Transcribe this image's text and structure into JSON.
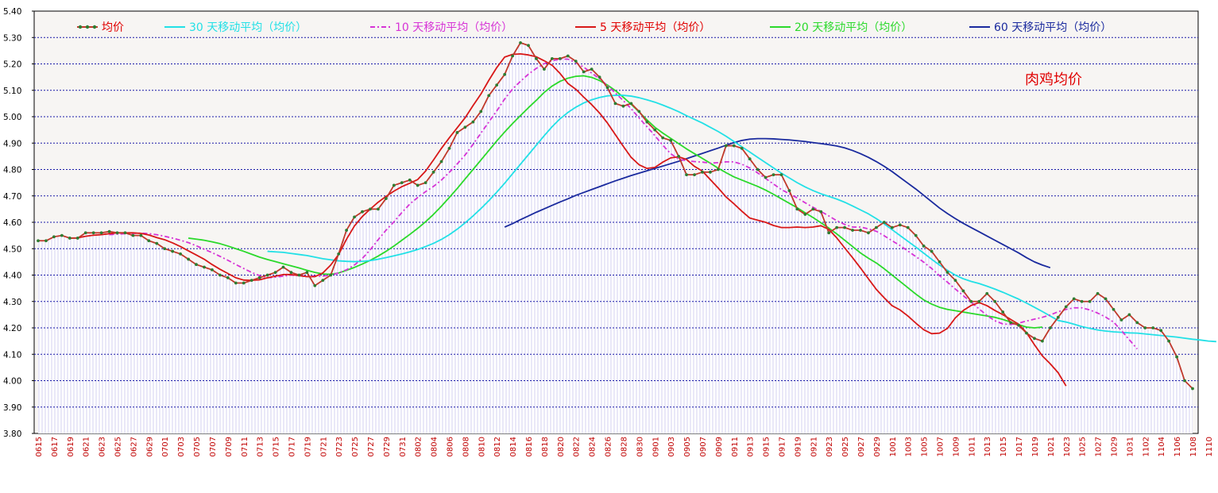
{
  "chart_data": {
    "type": "line",
    "title": "肉鸡均价",
    "xlabel": "",
    "ylabel": "",
    "ylim": [
      3.8,
      5.4
    ],
    "yticks": [
      "3.80",
      "3.90",
      "4.00",
      "4.10",
      "4.20",
      "4.30",
      "4.40",
      "4.50",
      "4.60",
      "4.70",
      "4.80",
      "4.90",
      "5.00",
      "5.10",
      "5.20",
      "5.30",
      "5.40"
    ],
    "xticks": [
      "0615",
      "0617",
      "0619",
      "0621",
      "0623",
      "0625",
      "0627",
      "0629",
      "0701",
      "0703",
      "0705",
      "0707",
      "0709",
      "0711",
      "0713",
      "0715",
      "0717",
      "0719",
      "0721",
      "0723",
      "0725",
      "0727",
      "0729",
      "0731",
      "0802",
      "0804",
      "0806",
      "0808",
      "0810",
      "0812",
      "0814",
      "0816",
      "0818",
      "0820",
      "0822",
      "0824",
      "0826",
      "0828",
      "0830",
      "0901",
      "0903",
      "0905",
      "0907",
      "0909",
      "0911",
      "0913",
      "0915",
      "0917",
      "0919",
      "0921",
      "0923",
      "0925",
      "0927",
      "0929",
      "1001",
      "1003",
      "1005",
      "1007",
      "1009",
      "1011",
      "1013",
      "1015",
      "1017",
      "1019",
      "1021",
      "1023",
      "1025",
      "1027",
      "1029",
      "1031",
      "1102",
      "1104",
      "1106",
      "1108",
      "1110"
    ],
    "grid": true,
    "legend_position": "top",
    "colors": {
      "price": "#c0392b",
      "price_marker": "#2e7d32",
      "ma30": "#22e0e6",
      "ma10": "#d633d6",
      "ma5": "#d81818",
      "ma20": "#2bd92b",
      "ma60": "#1a2a9e",
      "grid": "#1a1aa8",
      "label_red": "#e00000"
    },
    "series": [
      {
        "name": "均价",
        "color_key": "price",
        "start_index": 0,
        "values": [
          4.53,
          4.53,
          4.545,
          4.55,
          4.54,
          4.54,
          4.56,
          4.56,
          4.56,
          4.565,
          4.56,
          4.56,
          4.55,
          4.55,
          4.53,
          4.52,
          4.5,
          4.49,
          4.48,
          4.46,
          4.44,
          4.43,
          4.42,
          4.4,
          4.39,
          4.37,
          4.37,
          4.38,
          4.39,
          4.4,
          4.41,
          4.43,
          4.41,
          4.4,
          4.41,
          4.36,
          4.38,
          4.4,
          4.48,
          4.57,
          4.62,
          4.64,
          4.65,
          4.65,
          4.69,
          4.74,
          4.75,
          4.76,
          4.74,
          4.75,
          4.79,
          4.83,
          4.88,
          4.94,
          4.96,
          4.98,
          5.02,
          5.08,
          5.12,
          5.16,
          5.23,
          5.28,
          5.27,
          5.22,
          5.18,
          5.22,
          5.22,
          5.23,
          5.21,
          5.17,
          5.18,
          5.15,
          5.11,
          5.05,
          5.04,
          5.05,
          5.02,
          4.98,
          4.95,
          4.92,
          4.91,
          4.85,
          4.78,
          4.78,
          4.79,
          4.79,
          4.8,
          4.89,
          4.89,
          4.88,
          4.84,
          4.8,
          4.77,
          4.78,
          4.78,
          4.72,
          4.65,
          4.63,
          4.65,
          4.64,
          4.56,
          4.58,
          4.58,
          4.57,
          4.57,
          4.56,
          4.58,
          4.6,
          4.58,
          4.59,
          4.58,
          4.55,
          4.51,
          4.49,
          4.45,
          4.41,
          4.38,
          4.34,
          4.3,
          4.3,
          4.33,
          4.3,
          4.26,
          4.22,
          4.21,
          4.18,
          4.16,
          4.15,
          4.2,
          4.24,
          4.28,
          4.31,
          4.3,
          4.3,
          4.33,
          4.31,
          4.27,
          4.23,
          4.25,
          4.22,
          4.2,
          4.2,
          4.19,
          4.15,
          4.09,
          4.0,
          3.97
        ]
      },
      {
        "name": "30 天移动平均（均价）",
        "color_key": "ma30",
        "start_index": 29,
        "values": [
          4.49,
          4.488,
          4.486,
          4.482,
          4.478,
          4.474,
          4.468,
          4.462,
          4.458,
          4.454,
          4.452,
          4.451,
          4.452,
          4.455,
          4.46,
          4.466,
          4.473,
          4.48,
          4.488,
          4.497,
          4.508,
          4.52,
          4.535,
          4.553,
          4.574,
          4.598,
          4.624,
          4.652,
          4.682,
          4.714,
          4.748,
          4.784,
          4.82,
          4.856,
          4.892,
          4.928,
          4.962,
          4.992,
          5.016,
          5.036,
          5.052,
          5.064,
          5.073,
          5.079,
          5.081,
          5.081,
          5.078,
          5.072,
          5.064,
          5.055,
          5.044,
          5.032,
          5.019,
          5.004,
          4.99,
          4.976,
          4.96,
          4.944,
          4.926,
          4.906,
          4.886,
          4.866,
          4.846,
          4.826,
          4.806,
          4.786,
          4.768,
          4.75,
          4.734,
          4.72,
          4.708,
          4.698,
          4.688,
          4.676,
          4.662,
          4.647,
          4.632,
          4.614,
          4.594,
          4.572,
          4.55,
          4.528,
          4.506,
          4.483,
          4.46,
          4.438,
          4.418,
          4.4,
          4.386,
          4.376,
          4.368,
          4.358,
          4.347,
          4.335,
          4.322,
          4.309,
          4.294,
          4.278,
          4.262,
          4.245,
          4.228,
          4.222,
          4.214,
          4.205,
          4.198,
          4.192,
          4.188,
          4.185,
          4.183,
          4.181,
          4.18,
          4.177,
          4.174,
          4.171,
          4.168,
          4.165,
          4.161,
          4.157,
          4.154,
          4.15,
          4.148
        ]
      },
      {
        "name": "10 天移动平均（均价）",
        "color_key": "ma10",
        "start_index": 9,
        "values": [
          4.553,
          4.555,
          4.557,
          4.558,
          4.559,
          4.557,
          4.553,
          4.547,
          4.54,
          4.532,
          4.523,
          4.511,
          4.498,
          4.485,
          4.471,
          4.456,
          4.44,
          4.425,
          4.41,
          4.398,
          4.39,
          4.392,
          4.396,
          4.4,
          4.398,
          4.396,
          4.396,
          4.396,
          4.4,
          4.408,
          4.42,
          4.438,
          4.463,
          4.496,
          4.534,
          4.57,
          4.602,
          4.637,
          4.669,
          4.694,
          4.716,
          4.736,
          4.76,
          4.789,
          4.821,
          4.855,
          4.895,
          4.938,
          4.98,
          5.022,
          5.067,
          5.105,
          5.134,
          5.161,
          5.183,
          5.201,
          5.212,
          5.218,
          5.218,
          5.205,
          5.188,
          5.165,
          5.144,
          5.118,
          5.09,
          5.061,
          5.03,
          4.995,
          4.962,
          4.928,
          4.892,
          4.86,
          4.839,
          4.833,
          4.83,
          4.828,
          4.824,
          4.826,
          4.829,
          4.829,
          4.82,
          4.806,
          4.787,
          4.766,
          4.745,
          4.724,
          4.708,
          4.692,
          4.674,
          4.657,
          4.641,
          4.624,
          4.606,
          4.592,
          4.582,
          4.582,
          4.575,
          4.566,
          4.549,
          4.53,
          4.512,
          4.491,
          4.47,
          4.449,
          4.425,
          4.398,
          4.373,
          4.347,
          4.322,
          4.297,
          4.272,
          4.247,
          4.227,
          4.215,
          4.213,
          4.218,
          4.226,
          4.233,
          4.24,
          4.249,
          4.261,
          4.27,
          4.276,
          4.276,
          4.268,
          4.256,
          4.241,
          4.222,
          4.19,
          4.155,
          4.12
        ]
      },
      {
        "name": "5 天移动平均（均价）",
        "color_key": "ma5",
        "start_index": 4,
        "values": [
          4.54,
          4.541,
          4.547,
          4.551,
          4.553,
          4.557,
          4.56,
          4.56,
          4.56,
          4.558,
          4.552,
          4.542,
          4.534,
          4.522,
          4.508,
          4.492,
          4.476,
          4.46,
          4.44,
          4.422,
          4.406,
          4.39,
          4.381,
          4.38,
          4.382,
          4.39,
          4.396,
          4.402,
          4.402,
          4.398,
          4.394,
          4.394,
          4.408,
          4.438,
          4.478,
          4.536,
          4.586,
          4.622,
          4.65,
          4.676,
          4.698,
          4.718,
          4.735,
          4.748,
          4.762,
          4.794,
          4.836,
          4.88,
          4.92,
          4.958,
          4.996,
          5.042,
          5.086,
          5.138,
          5.186,
          5.226,
          5.236,
          5.238,
          5.234,
          5.227,
          5.212,
          5.195,
          5.164,
          5.126,
          5.104,
          5.074,
          5.046,
          5.014,
          4.976,
          4.932,
          4.888,
          4.846,
          4.818,
          4.804,
          4.808,
          4.828,
          4.844,
          4.848,
          4.838,
          4.812,
          4.794,
          4.762,
          4.73,
          4.696,
          4.67,
          4.642,
          4.616,
          4.608,
          4.6,
          4.588,
          4.58,
          4.58,
          4.582,
          4.58,
          4.582,
          4.587,
          4.573,
          4.541,
          4.503,
          4.466,
          4.427,
          4.386,
          4.346,
          4.314,
          4.284,
          4.268,
          4.245,
          4.218,
          4.193,
          4.178,
          4.18,
          4.198,
          4.238,
          4.266,
          4.285,
          4.296,
          4.284,
          4.266,
          4.25,
          4.232,
          4.214,
          4.182,
          4.136,
          4.094,
          4.064,
          4.03,
          3.98
        ]
      },
      {
        "name": "20 天移动平均（均价）",
        "color_key": "ma20",
        "start_index": 19,
        "values": [
          4.54,
          4.536,
          4.532,
          4.526,
          4.519,
          4.51,
          4.5,
          4.49,
          4.479,
          4.468,
          4.459,
          4.451,
          4.443,
          4.435,
          4.427,
          4.418,
          4.41,
          4.404,
          4.403,
          4.408,
          4.418,
          4.429,
          4.442,
          4.456,
          4.472,
          4.49,
          4.51,
          4.532,
          4.554,
          4.577,
          4.602,
          4.63,
          4.661,
          4.694,
          4.728,
          4.764,
          4.8,
          4.836,
          4.872,
          4.908,
          4.942,
          4.974,
          5.004,
          5.034,
          5.062,
          5.092,
          5.116,
          5.134,
          5.146,
          5.153,
          5.155,
          5.149,
          5.137,
          5.12,
          5.099,
          5.074,
          5.047,
          5.018,
          4.988,
          4.96,
          4.938,
          4.918,
          4.898,
          4.878,
          4.86,
          4.842,
          4.824,
          4.805,
          4.788,
          4.772,
          4.76,
          4.748,
          4.736,
          4.722,
          4.706,
          4.689,
          4.672,
          4.655,
          4.636,
          4.618,
          4.598,
          4.578,
          4.556,
          4.532,
          4.508,
          4.484,
          4.464,
          4.446,
          4.424,
          4.4,
          4.376,
          4.352,
          4.328,
          4.306,
          4.29,
          4.278,
          4.27,
          4.265,
          4.26,
          4.255,
          4.25,
          4.245,
          4.24,
          4.232,
          4.222,
          4.212,
          4.203,
          4.2,
          4.203
        ]
      },
      {
        "name": "60 天移动平均（均价）",
        "color_key": "ma60",
        "start_index": 59,
        "values": [
          4.582,
          4.595,
          4.61,
          4.624,
          4.638,
          4.651,
          4.664,
          4.677,
          4.689,
          4.702,
          4.713,
          4.724,
          4.735,
          4.746,
          4.757,
          4.767,
          4.777,
          4.786,
          4.795,
          4.804,
          4.813,
          4.822,
          4.831,
          4.841,
          4.851,
          4.861,
          4.871,
          4.881,
          4.892,
          4.902,
          4.91,
          4.915,
          4.917,
          4.917,
          4.916,
          4.914,
          4.912,
          4.909,
          4.906,
          4.902,
          4.898,
          4.894,
          4.889,
          4.882,
          4.872,
          4.86,
          4.846,
          4.83,
          4.812,
          4.792,
          4.77,
          4.748,
          4.726,
          4.702,
          4.678,
          4.654,
          4.633,
          4.614,
          4.596,
          4.58,
          4.564,
          4.548,
          4.532,
          4.516,
          4.5,
          4.484,
          4.466,
          4.45,
          4.438,
          4.428
        ]
      }
    ]
  },
  "legend": [
    {
      "label": "均价",
      "color_key": "price",
      "style": "marker"
    },
    {
      "label": "30 天移动平均（均价）",
      "color_key": "ma30",
      "style": "solid"
    },
    {
      "label": "10 天移动平均（均价）",
      "color_key": "ma10",
      "style": "dashdot"
    },
    {
      "label": "5 天移动平均（均价）",
      "color_key": "ma5",
      "style": "solid"
    },
    {
      "label": "20 天移动平均（均价）",
      "color_key": "ma20",
      "style": "solid"
    },
    {
      "label": "60 天移动平均（均价）",
      "color_key": "ma60",
      "style": "solid"
    }
  ]
}
